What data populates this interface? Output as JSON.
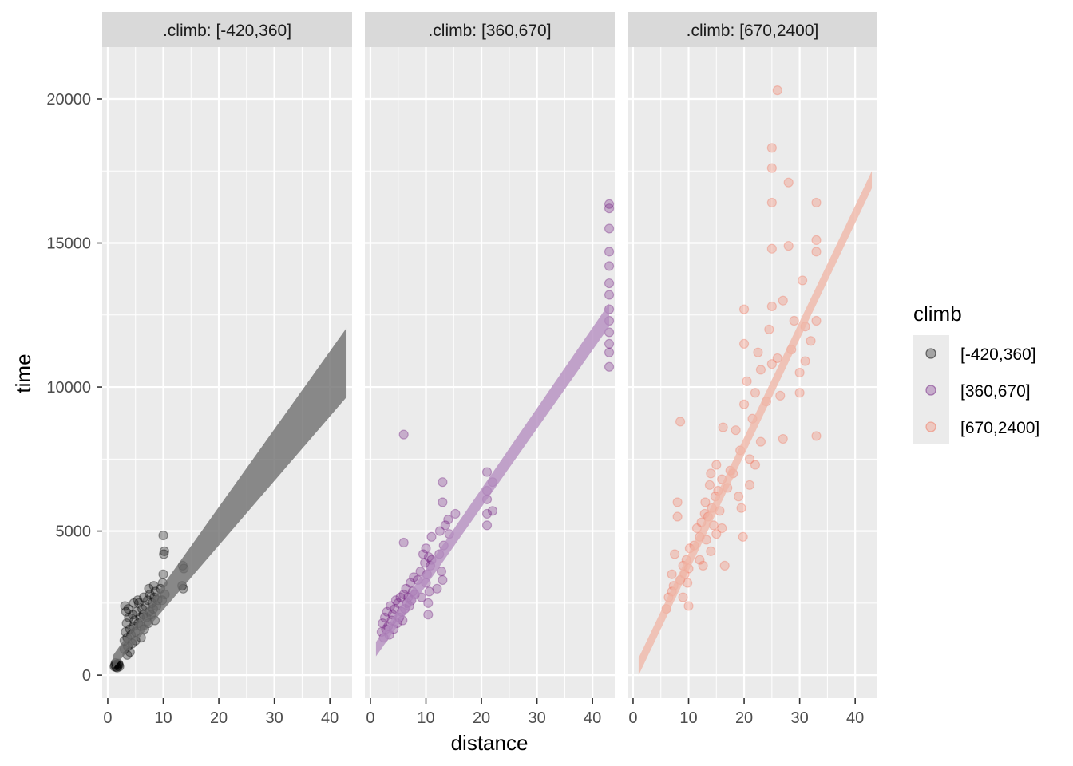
{
  "chart_data": {
    "type": "scatter",
    "title": "",
    "xlabel": "distance",
    "ylabel": "time",
    "xlim": [
      -1,
      44
    ],
    "ylim": [
      -800,
      21800
    ],
    "x_ticks": [
      0,
      10,
      20,
      30,
      40
    ],
    "y_ticks": [
      0,
      5000,
      10000,
      15000,
      20000
    ],
    "y_tick_labels": [
      "0",
      "5000",
      "10000",
      "15000",
      "20000"
    ],
    "grid": true,
    "legend": {
      "title": "climb",
      "position": "right",
      "entries": [
        {
          "label": "[-420,360]",
          "color": "#000000"
        },
        {
          "label": "[360,670]",
          "color": "#721F81"
        },
        {
          "label": "[670,2400]",
          "color": "#F1765E"
        }
      ]
    },
    "panels": [
      {
        "strip": ".climb: [-420,360]",
        "color": "#000000",
        "band_color": "#6b6b6b",
        "fit": {
          "x": [
            1,
            43
          ],
          "lower": [
            250,
            9650
          ],
          "upper": [
            700,
            12050
          ]
        },
        "points": [
          [
            1.2,
            300
          ],
          [
            1.3,
            350
          ],
          [
            1.5,
            280
          ],
          [
            1.6,
            380
          ],
          [
            1.8,
            320
          ],
          [
            2.0,
            360
          ],
          [
            1.4,
            420
          ],
          [
            1.7,
            260
          ],
          [
            2.1,
            300
          ],
          [
            1.9,
            400
          ],
          [
            3,
            900
          ],
          [
            3,
            1200
          ],
          [
            3.2,
            1500
          ],
          [
            3.4,
            1800
          ],
          [
            3.5,
            1300
          ],
          [
            3.6,
            1000
          ],
          [
            3.8,
            2000
          ],
          [
            4,
            1600
          ],
          [
            4.2,
            1400
          ],
          [
            4.4,
            1100
          ],
          [
            3.1,
            2400
          ],
          [
            3.3,
            2200
          ],
          [
            4.5,
            2100
          ],
          [
            4.6,
            1700
          ],
          [
            4.8,
            1900
          ],
          [
            5,
            1500
          ],
          [
            5.2,
            2200
          ],
          [
            5.5,
            1800
          ],
          [
            5.6,
            2500
          ],
          [
            5.8,
            2000
          ],
          [
            6,
            1700
          ],
          [
            6.2,
            2300
          ],
          [
            6.4,
            2100
          ],
          [
            6.6,
            1600
          ],
          [
            6.8,
            2400
          ],
          [
            7,
            2000
          ],
          [
            7.2,
            2600
          ],
          [
            7.3,
            1800
          ],
          [
            7.5,
            2200
          ],
          [
            7.6,
            2800
          ],
          [
            7.8,
            2100
          ],
          [
            8,
            2500
          ],
          [
            8.2,
            2300
          ],
          [
            8.4,
            2700
          ],
          [
            8.5,
            1900
          ],
          [
            8.6,
            2900
          ],
          [
            8.8,
            2400
          ],
          [
            9,
            2600
          ],
          [
            7.4,
            3000
          ],
          [
            8.3,
            3100
          ],
          [
            6.5,
            2700
          ],
          [
            5.4,
            2600
          ],
          [
            4.7,
            2500
          ],
          [
            3.7,
            2300
          ],
          [
            9.5,
            3000
          ],
          [
            9.8,
            2600
          ],
          [
            10,
            3500
          ],
          [
            10.2,
            4300
          ],
          [
            10,
            4850
          ],
          [
            10.1,
            4200
          ],
          [
            9.9,
            3200
          ],
          [
            10.3,
            2800
          ],
          [
            13.5,
            3800
          ],
          [
            13.6,
            3000
          ],
          [
            13.4,
            3100
          ],
          [
            13.7,
            3700
          ],
          [
            4,
            800
          ],
          [
            3.5,
            700
          ],
          [
            5,
            1200
          ],
          [
            6,
            1300
          ]
        ]
      },
      {
        "strip": ".climb: [360,670]",
        "color": "#721F81",
        "band_color": "#b38cbf",
        "fit": {
          "x": [
            1,
            43
          ],
          "lower": [
            650,
            12100
          ],
          "upper": [
            1150,
            12900
          ]
        },
        "points": [
          [
            2,
            1500
          ],
          [
            2.2,
            1800
          ],
          [
            2.4,
            1300
          ],
          [
            2.6,
            2000
          ],
          [
            2.8,
            1600
          ],
          [
            3,
            2200
          ],
          [
            3.2,
            1700
          ],
          [
            3.4,
            1400
          ],
          [
            3.6,
            2400
          ],
          [
            3.8,
            1900
          ],
          [
            4,
            2100
          ],
          [
            4.2,
            1600
          ],
          [
            4.4,
            2300
          ],
          [
            4.6,
            2600
          ],
          [
            4.8,
            1800
          ],
          [
            5,
            2500
          ],
          [
            5.2,
            2000
          ],
          [
            5.4,
            2700
          ],
          [
            5.6,
            2200
          ],
          [
            5.8,
            1900
          ],
          [
            6,
            2800
          ],
          [
            6.2,
            2300
          ],
          [
            6.4,
            3000
          ],
          [
            6.6,
            2500
          ],
          [
            6.8,
            2700
          ],
          [
            7,
            2400
          ],
          [
            7.2,
            3200
          ],
          [
            7.4,
            2600
          ],
          [
            7.6,
            2900
          ],
          [
            7.8,
            3400
          ],
          [
            6,
            4600
          ],
          [
            6,
            8350
          ],
          [
            8,
            2800
          ],
          [
            8.5,
            3300
          ],
          [
            9,
            3600
          ],
          [
            9.2,
            2700
          ],
          [
            9.5,
            4200
          ],
          [
            9.8,
            3900
          ],
          [
            10,
            3200
          ],
          [
            10,
            4400
          ],
          [
            10.2,
            3500
          ],
          [
            10.4,
            2500
          ],
          [
            10.5,
            4100
          ],
          [
            10.6,
            2900
          ],
          [
            10.8,
            3800
          ],
          [
            10.4,
            2100
          ],
          [
            11,
            4000
          ],
          [
            11,
            4800
          ],
          [
            12,
            3000
          ],
          [
            12.4,
            4200
          ],
          [
            12.8,
            3600
          ],
          [
            13,
            3300
          ],
          [
            13.2,
            4500
          ],
          [
            13.5,
            5200
          ],
          [
            13,
            6000
          ],
          [
            12.5,
            5000
          ],
          [
            13,
            6700
          ],
          [
            14,
            5400
          ],
          [
            14.2,
            4900
          ],
          [
            15.3,
            5600
          ],
          [
            21,
            5200
          ],
          [
            21,
            5600
          ],
          [
            21,
            6100
          ],
          [
            21,
            6400
          ],
          [
            21,
            7050
          ],
          [
            22,
            5700
          ],
          [
            22,
            6700
          ],
          [
            43,
            10700
          ],
          [
            43,
            11200
          ],
          [
            43,
            11500
          ],
          [
            43,
            11900
          ],
          [
            43,
            12300
          ],
          [
            43,
            12700
          ],
          [
            43,
            13200
          ],
          [
            43,
            13600
          ],
          [
            43,
            14200
          ],
          [
            43,
            14700
          ],
          [
            43,
            15500
          ],
          [
            43,
            16200
          ],
          [
            43,
            16350
          ]
        ]
      },
      {
        "strip": ".climb: [670,2400]",
        "color": "#F1765E",
        "band_color": "#efb6a6",
        "fit": {
          "x": [
            1,
            43
          ],
          "lower": [
            0,
            16900
          ],
          "upper": [
            600,
            17500
          ]
        },
        "points": [
          [
            6,
            2300
          ],
          [
            6.4,
            2700
          ],
          [
            7,
            2900
          ],
          [
            7,
            3500
          ],
          [
            7.3,
            3100
          ],
          [
            7.5,
            4200
          ],
          [
            8,
            5500
          ],
          [
            8,
            6000
          ],
          [
            8.5,
            3300
          ],
          [
            8.5,
            8800
          ],
          [
            9,
            3800
          ],
          [
            9,
            2700
          ],
          [
            9.3,
            3500
          ],
          [
            9.6,
            4000
          ],
          [
            9.8,
            3200
          ],
          [
            10,
            3700
          ],
          [
            10,
            2400
          ],
          [
            10.2,
            4400
          ],
          [
            11,
            4500
          ],
          [
            11.5,
            5100
          ],
          [
            12,
            4000
          ],
          [
            12,
            4800
          ],
          [
            12.3,
            5300
          ],
          [
            12.6,
            3800
          ],
          [
            12.9,
            5600
          ],
          [
            13,
            6000
          ],
          [
            13.2,
            4700
          ],
          [
            13.5,
            5500
          ],
          [
            13.8,
            6600
          ],
          [
            14,
            4300
          ],
          [
            14,
            7000
          ],
          [
            14.2,
            5800
          ],
          [
            14.5,
            5200
          ],
          [
            14.8,
            6200
          ],
          [
            15,
            4900
          ],
          [
            15,
            7300
          ],
          [
            15.3,
            6400
          ],
          [
            15.6,
            5700
          ],
          [
            16,
            5100
          ],
          [
            16,
            6800
          ],
          [
            16.5,
            3800
          ],
          [
            16.2,
            8600
          ],
          [
            17,
            6500
          ],
          [
            17.5,
            7100
          ],
          [
            18,
            7000
          ],
          [
            18.5,
            8500
          ],
          [
            19,
            6200
          ],
          [
            19.3,
            7800
          ],
          [
            19.5,
            5800
          ],
          [
            19.8,
            4800
          ],
          [
            20,
            9400
          ],
          [
            20,
            11500
          ],
          [
            20,
            12700
          ],
          [
            20.5,
            10200
          ],
          [
            21,
            7500
          ],
          [
            21,
            6600
          ],
          [
            21.5,
            8900
          ],
          [
            22,
            9800
          ],
          [
            22,
            7300
          ],
          [
            22.5,
            11200
          ],
          [
            23,
            8100
          ],
          [
            23,
            10600
          ],
          [
            24,
            9500
          ],
          [
            24.5,
            12000
          ],
          [
            25,
            10800
          ],
          [
            25,
            12800
          ],
          [
            25,
            14800
          ],
          [
            25,
            16400
          ],
          [
            25,
            17600
          ],
          [
            25,
            18300
          ],
          [
            26,
            20300
          ],
          [
            26,
            11000
          ],
          [
            26.5,
            9700
          ],
          [
            27,
            13000
          ],
          [
            27,
            8200
          ],
          [
            28,
            14900
          ],
          [
            28,
            17100
          ],
          [
            28.5,
            11300
          ],
          [
            29,
            12300
          ],
          [
            30,
            10500
          ],
          [
            30,
            9800
          ],
          [
            30.5,
            13700
          ],
          [
            31,
            12100
          ],
          [
            31,
            10900
          ],
          [
            32,
            11600
          ],
          [
            33,
            14700
          ],
          [
            33,
            15100
          ],
          [
            33,
            16400
          ],
          [
            33,
            12300
          ],
          [
            33,
            8300
          ]
        ]
      }
    ]
  }
}
